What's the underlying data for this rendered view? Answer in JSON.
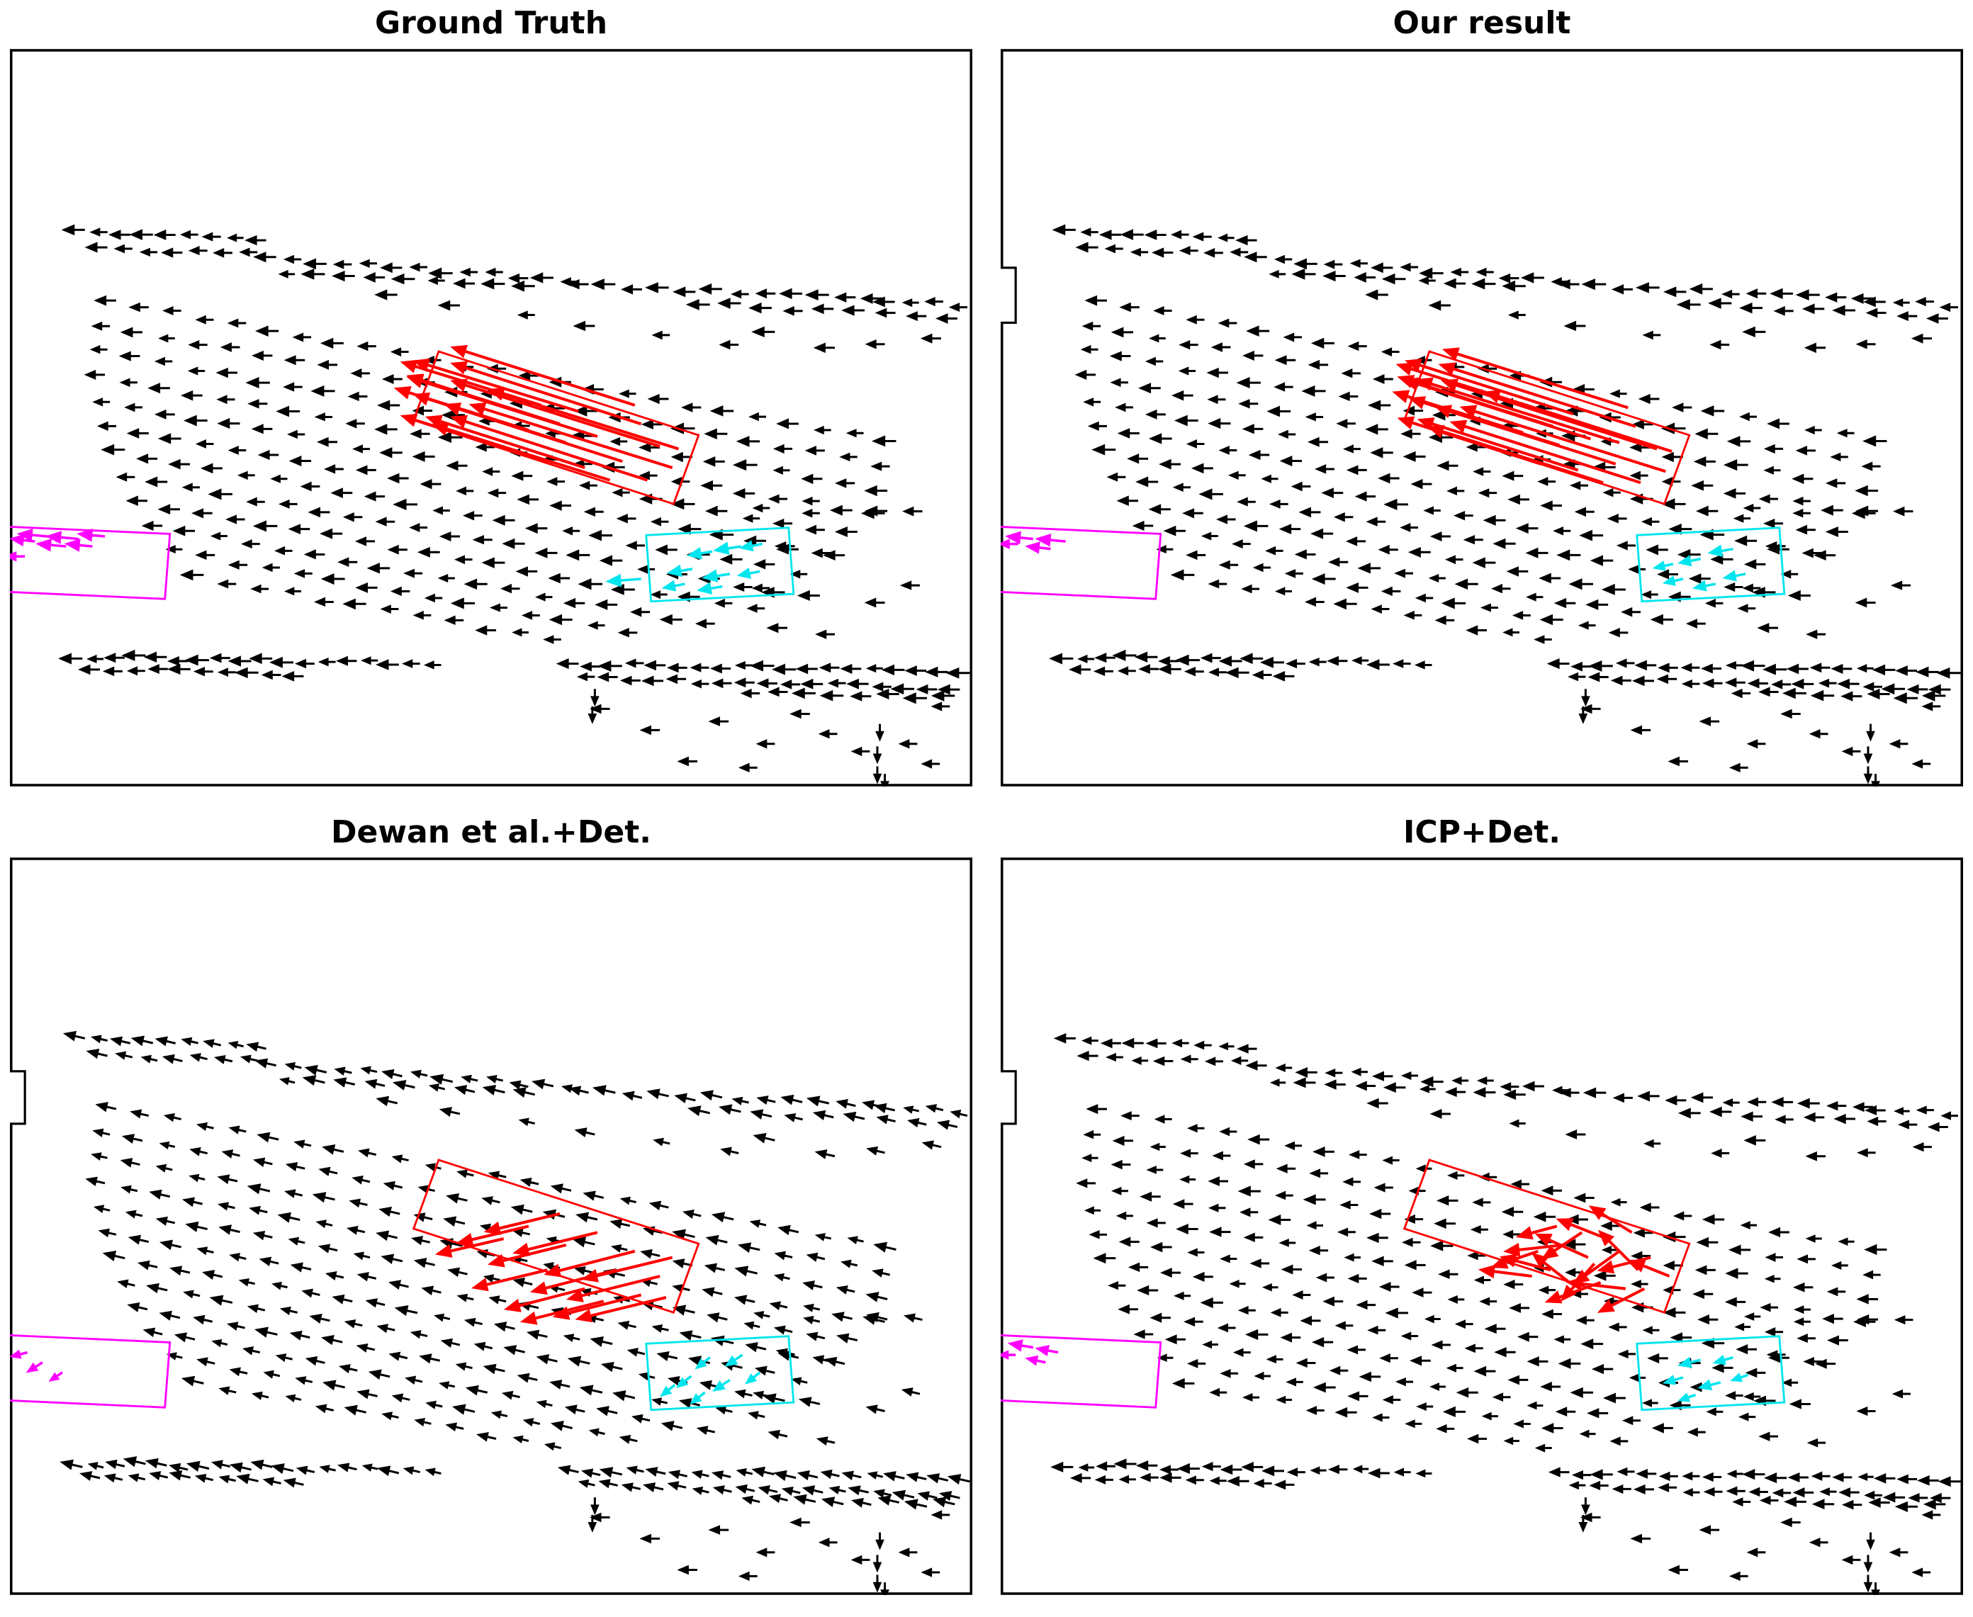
{
  "figure": {
    "panel_titles": [
      "Ground Truth",
      "Our result",
      "Dewan et al.+Det.",
      "ICP+Det."
    ]
  },
  "colors": {
    "black": "#000000",
    "red": "#ff0000",
    "magenta": "#ff00ff",
    "cyan": "#00e5ee",
    "frame": "#000000",
    "background": "#ffffff"
  },
  "chart_data": {
    "type": "scatter",
    "subtype": "quiver",
    "grid": false,
    "ticks": false,
    "frame": true,
    "base": {
      "frame_size": [
        770,
        590
      ],
      "top_runs": [
        [
          60,
          146,
          205,
          153,
          9
        ],
        [
          78,
          159,
          198,
          164,
          7
        ],
        [
          213,
          167,
          455,
          185,
          13
        ],
        [
          228,
          179,
          420,
          191,
          9
        ],
        [
          463,
          189,
          698,
          200,
          12
        ],
        [
          560,
          204,
          758,
          214,
          9
        ],
        [
          708,
          201,
          766,
          205,
          4
        ]
      ],
      "upper_extras": [
        [
          420,
          214
        ],
        [
          468,
          222
        ],
        [
          528,
          230
        ],
        [
          583,
          236
        ],
        [
          612,
          227
        ],
        [
          660,
          240
        ],
        [
          700,
          235
        ],
        [
          745,
          231
        ],
        [
          360,
          205
        ],
        [
          310,
          198
        ]
      ],
      "field_rows": [
        [
          85,
          202,
          25
        ],
        [
          80,
          222,
          25
        ],
        [
          78,
          242,
          25
        ],
        [
          76,
          262,
          25
        ],
        [
          80,
          282,
          24
        ],
        [
          85,
          302,
          23
        ],
        [
          92,
          322,
          22
        ],
        [
          100,
          342,
          21
        ],
        [
          110,
          362,
          20
        ],
        [
          122,
          382,
          18
        ],
        [
          138,
          402,
          15
        ],
        [
          155,
          422,
          12
        ]
      ],
      "field_step": [
        26,
        4.6
      ],
      "right_extras": [
        [
          608,
          366
        ],
        [
          648,
          372
        ],
        [
          702,
          368
        ],
        [
          628,
          398
        ],
        [
          668,
          404
        ],
        [
          608,
          432
        ],
        [
          648,
          438
        ],
        [
          700,
          445
        ],
        [
          622,
          462
        ],
        [
          660,
          468
        ],
        [
          730,
          370
        ],
        [
          728,
          430
        ]
      ],
      "bottom_runs": [
        [
          58,
          486,
          345,
          492,
          18
        ],
        [
          72,
          496,
          235,
          500,
          10
        ],
        [
          455,
          492,
          768,
          499,
          19
        ],
        [
          468,
          504,
          760,
          511,
          17
        ],
        [
          600,
          514,
          756,
          519,
          8
        ]
      ],
      "bottom_scatter": [
        [
          480,
          528,
          -14,
          0
        ],
        [
          520,
          545,
          -14,
          0
        ],
        [
          575,
          538,
          -14,
          0
        ],
        [
          612,
          556,
          -13,
          0
        ],
        [
          640,
          532,
          -14,
          0
        ],
        [
          662,
          548,
          -13,
          0
        ],
        [
          688,
          562,
          -13,
          0
        ],
        [
          700,
          580,
          0,
          12
        ],
        [
          726,
          556,
          -13,
          0
        ],
        [
          744,
          572,
          -13,
          0
        ],
        [
          468,
          512,
          0,
          12
        ],
        [
          466,
          526,
          0,
          12
        ],
        [
          696,
          540,
          0,
          12
        ],
        [
          694,
          558,
          0,
          12
        ],
        [
          694,
          574,
          0,
          12
        ],
        [
          550,
          570,
          -14,
          0
        ],
        [
          598,
          575,
          -13,
          0
        ],
        [
          752,
          526,
          -13,
          0
        ]
      ],
      "boxes": {
        "red": [
          [
            343,
            242
          ],
          [
            551,
            309
          ],
          [
            531,
            364
          ],
          [
            323,
            297
          ]
        ],
        "magenta": [
          [
            -6,
            382
          ],
          [
            128,
            388
          ],
          [
            124,
            440
          ],
          [
            -10,
            434
          ]
        ],
        "cyan": [
          [
            509,
            389
          ],
          [
            623,
            383
          ],
          [
            627,
            436
          ],
          [
            513,
            442
          ]
        ]
      }
    },
    "panels": [
      {
        "id": "ground-truth",
        "title": "Ground Truth",
        "bg_dir": [
          -14,
          0
        ],
        "edge_box": null,
        "red_arrows": [
          [
            520,
            318,
            -165,
            -52
          ],
          [
            505,
            300,
            -150,
            -48
          ],
          [
            530,
            335,
            -160,
            -50
          ],
          [
            490,
            330,
            -140,
            -45
          ],
          [
            470,
            310,
            -150,
            -47
          ],
          [
            455,
            290,
            -130,
            -40
          ],
          [
            510,
            345,
            -155,
            -50
          ],
          [
            440,
            300,
            -120,
            -38
          ],
          [
            480,
            345,
            -140,
            -44
          ],
          [
            430,
            330,
            -115,
            -36
          ],
          [
            460,
            335,
            -125,
            -40
          ],
          [
            500,
            285,
            -145,
            -46
          ],
          [
            425,
            285,
            -110,
            -34
          ],
          [
            445,
            315,
            -120,
            -38
          ],
          [
            415,
            305,
            -105,
            -33
          ],
          [
            535,
            320,
            -150,
            -47
          ]
        ],
        "magenta_arrows": [
          [
            30,
            390,
            -22,
            -2
          ],
          [
            55,
            392,
            -24,
            -2
          ],
          [
            76,
            390,
            -20,
            -2
          ],
          [
            45,
            398,
            -22,
            -2
          ],
          [
            20,
            394,
            -18,
            -2
          ],
          [
            66,
            398,
            -20,
            -2
          ],
          [
            12,
            406,
            -14,
            0
          ]
        ],
        "cyan_arrows": [
          [
            585,
            398,
            -20,
            3
          ],
          [
            562,
            402,
            -18,
            3
          ],
          [
            602,
            396,
            -16,
            3
          ],
          [
            546,
            416,
            -18,
            3
          ],
          [
            576,
            420,
            -20,
            3
          ],
          [
            600,
            418,
            -16,
            3
          ],
          [
            540,
            428,
            -16,
            3
          ],
          [
            570,
            430,
            -18,
            3
          ],
          [
            505,
            424,
            -26,
            2
          ]
        ]
      },
      {
        "id": "our-result",
        "title": "Our result",
        "bg_dir": [
          -14,
          0
        ],
        "edge_box": [
          175,
          44
        ],
        "red_arrows": [
          [
            525,
            320,
            -170,
            -54
          ],
          [
            508,
            302,
            -155,
            -49
          ],
          [
            532,
            338,
            -162,
            -51
          ],
          [
            492,
            332,
            -142,
            -45
          ],
          [
            472,
            312,
            -148,
            -47
          ],
          [
            458,
            292,
            -132,
            -42
          ],
          [
            512,
            347,
            -150,
            -48
          ],
          [
            442,
            302,
            -122,
            -39
          ],
          [
            482,
            347,
            -138,
            -44
          ],
          [
            432,
            332,
            -112,
            -36
          ],
          [
            462,
            337,
            -126,
            -40
          ],
          [
            502,
            287,
            -146,
            -46
          ],
          [
            427,
            287,
            -108,
            -34
          ],
          [
            447,
            317,
            -118,
            -37
          ],
          [
            418,
            307,
            -102,
            -32
          ],
          [
            537,
            322,
            -148,
            -47
          ],
          [
            495,
            315,
            -160,
            -50
          ]
        ],
        "magenta_arrows": [
          [
            26,
            392,
            -20,
            -2
          ],
          [
            52,
            394,
            -22,
            -2
          ],
          [
            40,
            400,
            -18,
            -2
          ],
          [
            14,
            396,
            -14,
            0
          ]
        ],
        "cyan_arrows": [
          [
            586,
            400,
            -18,
            3
          ],
          [
            560,
            408,
            -16,
            3
          ],
          [
            596,
            420,
            -16,
            3
          ],
          [
            546,
            424,
            -14,
            3
          ],
          [
            572,
            428,
            -16,
            3
          ],
          [
            538,
            412,
            -14,
            3
          ]
        ]
      },
      {
        "id": "dewan-det",
        "title": "Dewan et al.+Det.",
        "bg_dir": [
          -13,
          -3
        ],
        "edge_box": [
          171,
          42
        ],
        "red_arrows": [
          [
            500,
            315,
            -70,
            18
          ],
          [
            470,
            300,
            -65,
            16
          ],
          [
            520,
            335,
            -72,
            18
          ],
          [
            445,
            310,
            -60,
            15
          ],
          [
            485,
            330,
            -66,
            17
          ],
          [
            430,
            330,
            -58,
            14
          ],
          [
            460,
            345,
            -62,
            16
          ],
          [
            505,
            350,
            -68,
            17
          ],
          [
            415,
            295,
            -55,
            13
          ],
          [
            440,
            285,
            -58,
            14
          ],
          [
            530,
            320,
            -70,
            17
          ],
          [
            395,
            305,
            -52,
            12
          ],
          [
            475,
            355,
            -64,
            16
          ],
          [
            525,
            352,
            -70,
            17
          ]
        ],
        "magenta_arrows": [
          [
            26,
            404,
            -11,
            7
          ],
          [
            42,
            412,
            -9,
            6
          ],
          [
            14,
            396,
            -12,
            3
          ]
        ],
        "cyan_arrows": [
          [
            560,
            400,
            -10,
            8
          ],
          [
            586,
            398,
            -12,
            8
          ],
          [
            545,
            415,
            -10,
            8
          ],
          [
            576,
            418,
            -12,
            8
          ],
          [
            600,
            412,
            -10,
            8
          ],
          [
            556,
            428,
            -10,
            8
          ],
          [
            532,
            422,
            -10,
            8
          ]
        ]
      },
      {
        "id": "icp-det",
        "title": "ICP+Det.",
        "bg_dir": [
          -13,
          0
        ],
        "edge_box": [
          171,
          42
        ],
        "red_arrows": [
          [
            470,
            320,
            -40,
            -18
          ],
          [
            495,
            315,
            -35,
            25
          ],
          [
            450,
            310,
            -45,
            5
          ],
          [
            510,
            330,
            -30,
            -30
          ],
          [
            480,
            340,
            -42,
            15
          ],
          [
            440,
            330,
            -38,
            -10
          ],
          [
            465,
            300,
            -30,
            20
          ],
          [
            500,
            345,
            -45,
            -5
          ],
          [
            430,
            315,
            -35,
            12
          ],
          [
            520,
            320,
            -40,
            10
          ],
          [
            455,
            340,
            -28,
            -22
          ],
          [
            485,
            305,
            -38,
            -15
          ],
          [
            445,
            295,
            -30,
            8
          ],
          [
            515,
            345,
            -35,
            18
          ],
          [
            425,
            335,
            -40,
            -5
          ],
          [
            535,
            335,
            -30,
            -12
          ],
          [
            475,
            325,
            -25,
            28
          ],
          [
            505,
            300,
            -32,
            -20
          ]
        ],
        "magenta_arrows": [
          [
            26,
            392,
            -18,
            -3
          ],
          [
            46,
            396,
            -16,
            -3
          ],
          [
            36,
            404,
            -14,
            -3
          ],
          [
            12,
            398,
            -12,
            0
          ]
        ],
        "cyan_arrows": [
          [
            560,
            402,
            -16,
            4
          ],
          [
            586,
            400,
            -14,
            4
          ],
          [
            546,
            416,
            -14,
            4
          ],
          [
            576,
            420,
            -16,
            4
          ],
          [
            556,
            430,
            -12,
            4
          ],
          [
            598,
            414,
            -12,
            4
          ]
        ]
      }
    ]
  }
}
